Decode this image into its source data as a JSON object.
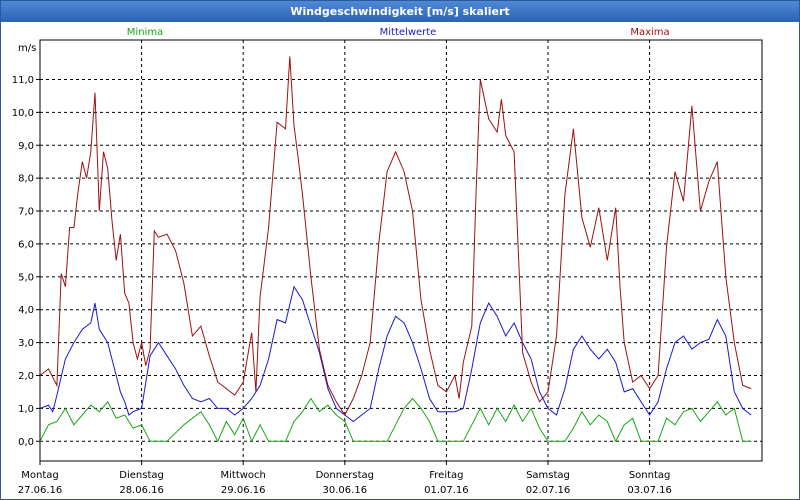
{
  "window": {
    "title": "Windgeschwindigkeit [m/s] skaliert"
  },
  "colors": {
    "min": "#19a519",
    "mean": "#1a1acc",
    "max": "#9b1111",
    "grid": "#000000"
  },
  "chart_data": {
    "type": "line",
    "title": "Windgeschwindigkeit [m/s] skaliert",
    "ylabel": "m/s",
    "ylim": [
      -0.6,
      12.2
    ],
    "xlim": [
      0,
      168
    ],
    "yticks": [
      "0,0",
      "1,0",
      "2,0",
      "3,0",
      "4,0",
      "5,0",
      "6,0",
      "7,0",
      "8,0",
      "9,0",
      "10,0",
      "11,0"
    ],
    "grid": true,
    "legend_placement": "top",
    "days": [
      {
        "name": "Montag",
        "date": "27.06.16"
      },
      {
        "name": "Dienstag",
        "date": "28.06.16"
      },
      {
        "name": "Mittwoch",
        "date": "29.06.16"
      },
      {
        "name": "Donnerstag",
        "date": "30.06.16"
      },
      {
        "name": "Freitag",
        "date": "01.07.16"
      },
      {
        "name": "Samstag",
        "date": "02.07.16"
      },
      {
        "name": "Sonntag",
        "date": "03.07.16"
      }
    ],
    "series": [
      {
        "name": "Minima",
        "key": "min",
        "values": [
          [
            0,
            0.0
          ],
          [
            2,
            0.5
          ],
          [
            4,
            0.6
          ],
          [
            6,
            1.0
          ],
          [
            8,
            0.5
          ],
          [
            10,
            0.8
          ],
          [
            12,
            1.1
          ],
          [
            14,
            0.9
          ],
          [
            16,
            1.2
          ],
          [
            18,
            0.7
          ],
          [
            20,
            0.8
          ],
          [
            22,
            0.4
          ],
          [
            24,
            0.5
          ],
          [
            26,
            0.0
          ],
          [
            30,
            0.0
          ],
          [
            34,
            0.5
          ],
          [
            38,
            0.9
          ],
          [
            40,
            0.5
          ],
          [
            42,
            0.0
          ],
          [
            44,
            0.6
          ],
          [
            46,
            0.2
          ],
          [
            48,
            0.7
          ],
          [
            50,
            0.0
          ],
          [
            52,
            0.5
          ],
          [
            54,
            0.0
          ],
          [
            58,
            0.0
          ],
          [
            60,
            0.6
          ],
          [
            62,
            0.9
          ],
          [
            64,
            1.3
          ],
          [
            66,
            0.9
          ],
          [
            68,
            1.1
          ],
          [
            70,
            0.8
          ],
          [
            72,
            0.6
          ],
          [
            74,
            0.0
          ],
          [
            78,
            0.0
          ],
          [
            82,
            0.0
          ],
          [
            84,
            0.5
          ],
          [
            86,
            1.0
          ],
          [
            88,
            1.3
          ],
          [
            90,
            1.0
          ],
          [
            92,
            0.6
          ],
          [
            94,
            0.0
          ],
          [
            98,
            0.0
          ],
          [
            100,
            0.0
          ],
          [
            102,
            0.5
          ],
          [
            104,
            1.0
          ],
          [
            106,
            0.5
          ],
          [
            108,
            1.0
          ],
          [
            110,
            0.6
          ],
          [
            112,
            1.1
          ],
          [
            114,
            0.6
          ],
          [
            116,
            1.0
          ],
          [
            118,
            0.4
          ],
          [
            120,
            0.0
          ],
          [
            124,
            0.0
          ],
          [
            126,
            0.4
          ],
          [
            128,
            0.9
          ],
          [
            130,
            0.5
          ],
          [
            132,
            0.8
          ],
          [
            134,
            0.6
          ],
          [
            136,
            0.0
          ],
          [
            138,
            0.5
          ],
          [
            140,
            0.7
          ],
          [
            142,
            0.0
          ],
          [
            146,
            0.0
          ],
          [
            148,
            0.7
          ],
          [
            150,
            0.5
          ],
          [
            152,
            0.9
          ],
          [
            154,
            1.0
          ],
          [
            156,
            0.6
          ],
          [
            158,
            0.9
          ],
          [
            160,
            1.2
          ],
          [
            162,
            0.8
          ],
          [
            164,
            1.0
          ],
          [
            166,
            0.0
          ],
          [
            168,
            0.0
          ]
        ]
      },
      {
        "name": "Mittelwerte",
        "key": "mean",
        "values": [
          [
            0,
            1.0
          ],
          [
            2,
            1.1
          ],
          [
            3,
            0.9
          ],
          [
            4,
            1.4
          ],
          [
            6,
            2.5
          ],
          [
            8,
            3.0
          ],
          [
            10,
            3.4
          ],
          [
            12,
            3.6
          ],
          [
            13,
            4.2
          ],
          [
            14,
            3.4
          ],
          [
            16,
            3.0
          ],
          [
            18,
            2.0
          ],
          [
            19,
            1.5
          ],
          [
            20,
            1.2
          ],
          [
            21,
            0.8
          ],
          [
            22,
            0.9
          ],
          [
            24,
            1.0
          ],
          [
            26,
            2.6
          ],
          [
            28,
            3.0
          ],
          [
            30,
            2.6
          ],
          [
            32,
            2.2
          ],
          [
            34,
            1.7
          ],
          [
            36,
            1.3
          ],
          [
            38,
            1.2
          ],
          [
            40,
            1.3
          ],
          [
            42,
            1.0
          ],
          [
            44,
            1.0
          ],
          [
            46,
            0.8
          ],
          [
            48,
            1.0
          ],
          [
            50,
            1.3
          ],
          [
            52,
            1.7
          ],
          [
            54,
            2.5
          ],
          [
            56,
            3.7
          ],
          [
            58,
            3.6
          ],
          [
            60,
            4.7
          ],
          [
            62,
            4.3
          ],
          [
            64,
            3.5
          ],
          [
            66,
            2.7
          ],
          [
            68,
            1.6
          ],
          [
            70,
            1.0
          ],
          [
            72,
            0.8
          ],
          [
            74,
            0.6
          ],
          [
            76,
            0.8
          ],
          [
            78,
            1.0
          ],
          [
            80,
            2.2
          ],
          [
            82,
            3.2
          ],
          [
            84,
            3.8
          ],
          [
            86,
            3.6
          ],
          [
            88,
            3.0
          ],
          [
            90,
            2.2
          ],
          [
            92,
            1.3
          ],
          [
            94,
            0.9
          ],
          [
            96,
            0.9
          ],
          [
            98,
            0.9
          ],
          [
            100,
            1.0
          ],
          [
            102,
            2.2
          ],
          [
            104,
            3.6
          ],
          [
            106,
            4.2
          ],
          [
            108,
            3.8
          ],
          [
            110,
            3.2
          ],
          [
            112,
            3.6
          ],
          [
            114,
            3.0
          ],
          [
            116,
            2.5
          ],
          [
            118,
            1.5
          ],
          [
            120,
            1.0
          ],
          [
            122,
            0.8
          ],
          [
            124,
            1.6
          ],
          [
            126,
            2.8
          ],
          [
            128,
            3.2
          ],
          [
            130,
            2.8
          ],
          [
            132,
            2.5
          ],
          [
            134,
            2.8
          ],
          [
            136,
            2.4
          ],
          [
            138,
            1.5
          ],
          [
            140,
            1.6
          ],
          [
            142,
            1.2
          ],
          [
            144,
            0.8
          ],
          [
            146,
            1.2
          ],
          [
            148,
            2.2
          ],
          [
            150,
            3.0
          ],
          [
            152,
            3.2
          ],
          [
            154,
            2.8
          ],
          [
            156,
            3.0
          ],
          [
            158,
            3.1
          ],
          [
            160,
            3.7
          ],
          [
            162,
            3.2
          ],
          [
            164,
            1.5
          ],
          [
            166,
            1.0
          ],
          [
            168,
            0.8
          ]
        ]
      },
      {
        "name": "Maxima",
        "key": "max",
        "values": [
          [
            0,
            2.0
          ],
          [
            2,
            2.2
          ],
          [
            4,
            1.7
          ],
          [
            5,
            5.1
          ],
          [
            6,
            4.7
          ],
          [
            7,
            6.5
          ],
          [
            8,
            6.5
          ],
          [
            9,
            7.6
          ],
          [
            10,
            8.5
          ],
          [
            11,
            8.0
          ],
          [
            12,
            8.8
          ],
          [
            13,
            10.6
          ],
          [
            14,
            7.0
          ],
          [
            15,
            8.8
          ],
          [
            16,
            8.3
          ],
          [
            17,
            6.7
          ],
          [
            18,
            5.5
          ],
          [
            19,
            6.3
          ],
          [
            20,
            4.5
          ],
          [
            21,
            4.2
          ],
          [
            22,
            3.0
          ],
          [
            23,
            2.5
          ],
          [
            24,
            3.0
          ],
          [
            25,
            2.3
          ],
          [
            26,
            2.8
          ],
          [
            27,
            6.4
          ],
          [
            28,
            6.2
          ],
          [
            30,
            6.3
          ],
          [
            32,
            5.8
          ],
          [
            34,
            4.8
          ],
          [
            36,
            3.2
          ],
          [
            38,
            3.5
          ],
          [
            40,
            2.6
          ],
          [
            42,
            1.8
          ],
          [
            44,
            1.6
          ],
          [
            46,
            1.4
          ],
          [
            48,
            1.8
          ],
          [
            50,
            3.3
          ],
          [
            51,
            1.5
          ],
          [
            52,
            4.4
          ],
          [
            54,
            6.5
          ],
          [
            56,
            9.7
          ],
          [
            58,
            9.5
          ],
          [
            59,
            11.7
          ],
          [
            60,
            9.6
          ],
          [
            61,
            8.6
          ],
          [
            62,
            7.5
          ],
          [
            64,
            5.0
          ],
          [
            66,
            2.8
          ],
          [
            68,
            1.7
          ],
          [
            70,
            1.2
          ],
          [
            72,
            0.8
          ],
          [
            74,
            1.3
          ],
          [
            76,
            2.0
          ],
          [
            78,
            3.0
          ],
          [
            80,
            6.0
          ],
          [
            82,
            8.2
          ],
          [
            84,
            8.8
          ],
          [
            86,
            8.2
          ],
          [
            88,
            7.0
          ],
          [
            90,
            4.3
          ],
          [
            92,
            2.8
          ],
          [
            94,
            1.7
          ],
          [
            96,
            1.5
          ],
          [
            98,
            2.0
          ],
          [
            99,
            1.3
          ],
          [
            100,
            2.4
          ],
          [
            102,
            3.5
          ],
          [
            103,
            7.5
          ],
          [
            104,
            11.0
          ],
          [
            106,
            9.8
          ],
          [
            108,
            9.4
          ],
          [
            109,
            10.4
          ],
          [
            110,
            9.3
          ],
          [
            112,
            8.8
          ],
          [
            114,
            2.7
          ],
          [
            116,
            1.8
          ],
          [
            118,
            1.2
          ],
          [
            120,
            1.5
          ],
          [
            122,
            3.2
          ],
          [
            124,
            7.5
          ],
          [
            126,
            9.5
          ],
          [
            128,
            6.8
          ],
          [
            130,
            5.9
          ],
          [
            132,
            7.1
          ],
          [
            134,
            5.5
          ],
          [
            136,
            7.1
          ],
          [
            137,
            4.7
          ],
          [
            138,
            3.0
          ],
          [
            140,
            1.8
          ],
          [
            142,
            2.0
          ],
          [
            144,
            1.6
          ],
          [
            146,
            2.0
          ],
          [
            148,
            5.9
          ],
          [
            150,
            8.2
          ],
          [
            152,
            7.3
          ],
          [
            154,
            10.2
          ],
          [
            156,
            7.0
          ],
          [
            158,
            7.9
          ],
          [
            160,
            8.5
          ],
          [
            162,
            5.0
          ],
          [
            164,
            3.0
          ],
          [
            166,
            1.7
          ],
          [
            168,
            1.6
          ]
        ]
      }
    ]
  }
}
